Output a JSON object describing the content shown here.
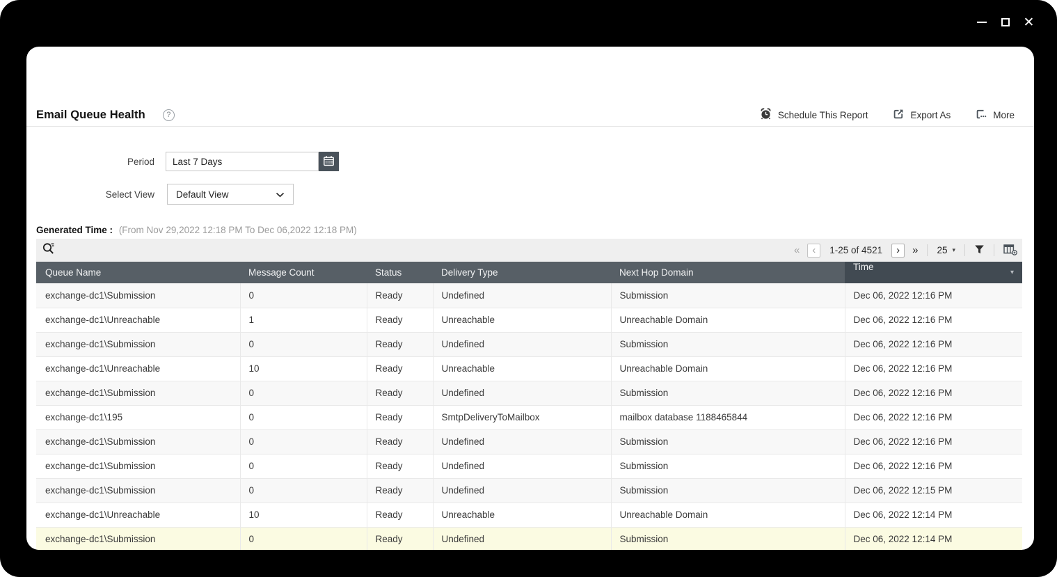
{
  "window": {
    "controls": [
      "minimize",
      "maximize",
      "close"
    ]
  },
  "header": {
    "title": "Email Queue Health",
    "actions": [
      {
        "label": "Schedule This Report",
        "icon": "alarm-clock-icon"
      },
      {
        "label": "Export As",
        "icon": "export-icon"
      },
      {
        "label": "More",
        "icon": "more-icon"
      }
    ]
  },
  "filters": {
    "period_label": "Period",
    "period_value": "Last 7 Days",
    "select_view_label": "Select View",
    "select_view_value": "Default View"
  },
  "generated_time": {
    "label": "Generated Time :",
    "range": "(From Nov 29,2022 12:18 PM To Dec 06,2022 12:18 PM)"
  },
  "toolbar": {
    "pagination": {
      "range": "1-25 of 4521",
      "page_size": "25"
    }
  },
  "icons": {
    "help": "?",
    "close": "✕",
    "first_page": "«",
    "prev_page": "‹",
    "next_page": "›",
    "last_page": "»",
    "page_size_caret": "▾",
    "sort_desc": "▾"
  },
  "table": {
    "columns": [
      "Queue Name",
      "Message Count",
      "Status",
      "Delivery Type",
      "Next Hop Domain",
      "Time"
    ],
    "sorted_column": "Time",
    "sort_direction": "desc",
    "rows": [
      {
        "cells": [
          "exchange-dc1\\Submission",
          "0",
          "Ready",
          "Undefined",
          "Submission",
          "Dec 06, 2022 12:16 PM"
        ],
        "highlighted": false
      },
      {
        "cells": [
          "exchange-dc1\\Unreachable",
          "1",
          "Ready",
          "Unreachable",
          "Unreachable Domain",
          "Dec 06, 2022 12:16 PM"
        ],
        "highlighted": false
      },
      {
        "cells": [
          "exchange-dc1\\Submission",
          "0",
          "Ready",
          "Undefined",
          "Submission",
          "Dec 06, 2022 12:16 PM"
        ],
        "highlighted": false
      },
      {
        "cells": [
          "exchange-dc1\\Unreachable",
          "10",
          "Ready",
          "Unreachable",
          "Unreachable Domain",
          "Dec 06, 2022 12:16 PM"
        ],
        "highlighted": false
      },
      {
        "cells": [
          "exchange-dc1\\Submission",
          "0",
          "Ready",
          "Undefined",
          "Submission",
          "Dec 06, 2022 12:16 PM"
        ],
        "highlighted": false
      },
      {
        "cells": [
          "exchange-dc1\\195",
          "0",
          "Ready",
          "SmtpDeliveryToMailbox",
          "mailbox database 1188465844",
          "Dec 06, 2022 12:16 PM"
        ],
        "highlighted": false
      },
      {
        "cells": [
          "exchange-dc1\\Submission",
          "0",
          "Ready",
          "Undefined",
          "Submission",
          "Dec 06, 2022 12:16 PM"
        ],
        "highlighted": false
      },
      {
        "cells": [
          "exchange-dc1\\Submission",
          "0",
          "Ready",
          "Undefined",
          "Submission",
          "Dec 06, 2022 12:16 PM"
        ],
        "highlighted": false
      },
      {
        "cells": [
          "exchange-dc1\\Submission",
          "0",
          "Ready",
          "Undefined",
          "Submission",
          "Dec 06, 2022 12:15 PM"
        ],
        "highlighted": false
      },
      {
        "cells": [
          "exchange-dc1\\Unreachable",
          "10",
          "Ready",
          "Unreachable",
          "Unreachable Domain",
          "Dec 06, 2022 12:14 PM"
        ],
        "highlighted": false
      },
      {
        "cells": [
          "exchange-dc1\\Submission",
          "0",
          "Ready",
          "Undefined",
          "Submission",
          "Dec 06, 2022 12:14 PM"
        ],
        "highlighted": true
      }
    ]
  },
  "colors": {
    "frame": "#000000",
    "table_header_bg": "#575f66",
    "table_header_sorted_bg": "#414a52",
    "row_alt_bg": "#f8f8f8",
    "row_highlight_bg": "#fbfbe2",
    "toolbar_bg": "#efefef",
    "calendar_button_bg": "#49525a"
  }
}
